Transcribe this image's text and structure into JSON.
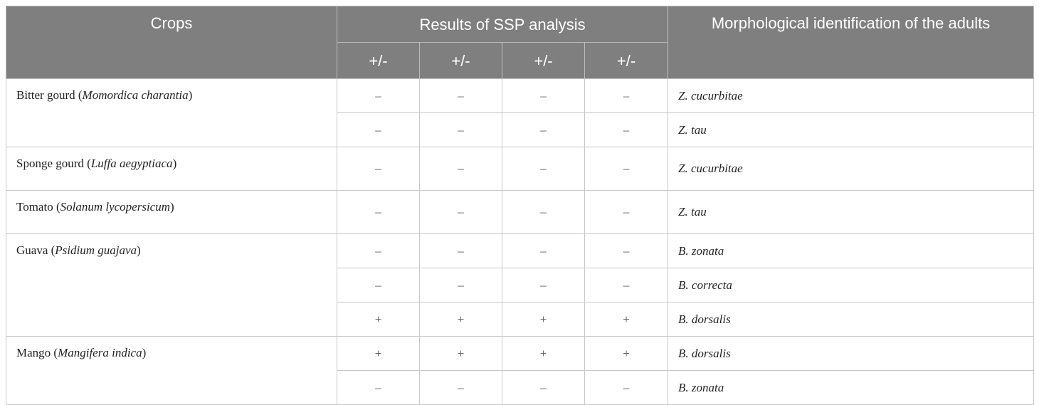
{
  "table": {
    "header": {
      "crops": "Crops",
      "ssp": "Results of SSP analysis",
      "signs": [
        "+/-",
        "+/-",
        "+/-",
        "+/-"
      ],
      "morph": "Morphological identification of the adults"
    },
    "groups": [
      {
        "crop": [
          {
            "text": "Bitter gourd ("
          },
          {
            "text": "Momordica charantia",
            "italic": true
          },
          {
            "text": ")"
          }
        ],
        "rows": [
          {
            "results": [
              "–",
              "–",
              "–",
              "–"
            ],
            "species": "Z. cucurbitae"
          },
          {
            "results": [
              "–",
              "–",
              "–",
              "–"
            ],
            "species": "Z. tau"
          }
        ]
      },
      {
        "crop": [
          {
            "text": "Sponge gourd ("
          },
          {
            "text": "Luffa aegyptiaca",
            "italic": true
          },
          {
            "text": ")"
          }
        ],
        "rows": [
          {
            "results": [
              "–",
              "–",
              "–",
              "–"
            ],
            "species": "Z. cucurbitae"
          }
        ]
      },
      {
        "crop": [
          {
            "text": "Tomato ("
          },
          {
            "text": "Solanum lycopersicum",
            "italic": true
          },
          {
            "text": ")"
          }
        ],
        "rows": [
          {
            "results": [
              "–",
              "–",
              "–",
              "–"
            ],
            "species": "Z. tau"
          }
        ]
      },
      {
        "crop": [
          {
            "text": "Guava ("
          },
          {
            "text": "Psidium guajava",
            "italic": true
          },
          {
            "text": ")"
          }
        ],
        "rows": [
          {
            "results": [
              "–",
              "–",
              "–",
              "–"
            ],
            "species": "B. zonata"
          },
          {
            "results": [
              "–",
              "–",
              "–",
              "–"
            ],
            "species": "B. correcta"
          },
          {
            "results": [
              "+",
              "+",
              "+",
              "+"
            ],
            "species": "B. dorsalis"
          }
        ]
      },
      {
        "crop": [
          {
            "text": "Mango ("
          },
          {
            "text": "Mangifera indica",
            "italic": true
          },
          {
            "text": ")"
          }
        ],
        "rows": [
          {
            "results": [
              "+",
              "+",
              "+",
              "+"
            ],
            "species": "B. dorsalis"
          },
          {
            "results": [
              "–",
              "–",
              "–",
              "–"
            ],
            "species": "B. zonata"
          }
        ]
      }
    ]
  }
}
